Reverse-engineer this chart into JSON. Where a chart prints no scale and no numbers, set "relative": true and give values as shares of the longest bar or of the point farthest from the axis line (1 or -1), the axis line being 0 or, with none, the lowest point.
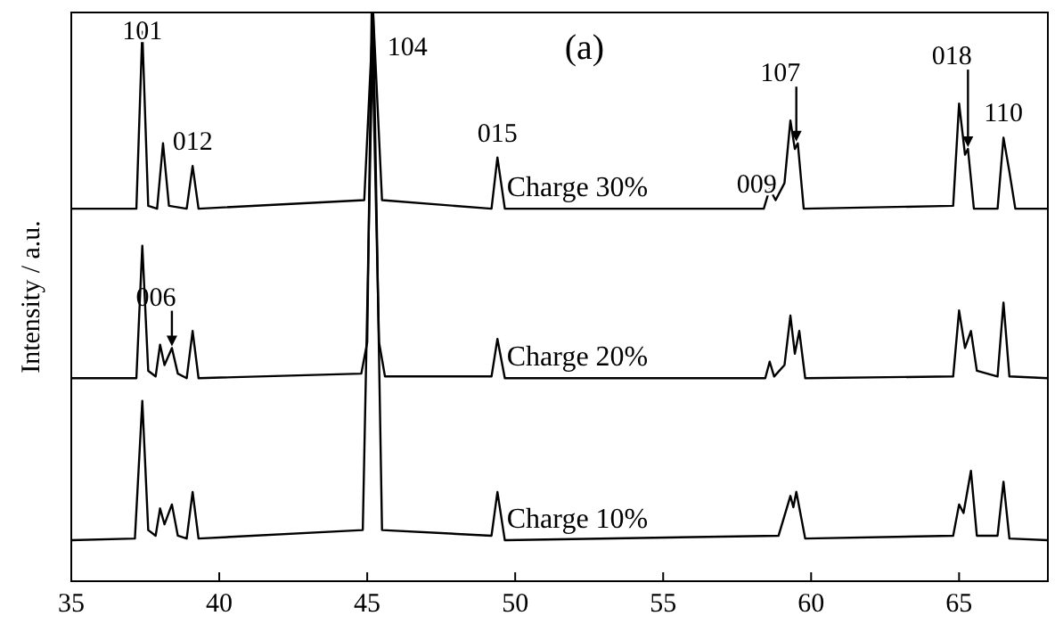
{
  "chart_data": {
    "type": "line",
    "ylabel": "Intensity / a.u.",
    "relative": true,
    "xlim": [
      35,
      68
    ],
    "xticks": [
      35,
      40,
      45,
      50,
      55,
      60,
      65
    ],
    "grid": false,
    "series": [
      {
        "name": "Charge 30%",
        "color": "#000000",
        "x": [
          35,
          37.2,
          37.4,
          37.6,
          37.9,
          38.1,
          38.3,
          38.9,
          39.1,
          39.3,
          44.9,
          45.2,
          45.5,
          49.2,
          49.4,
          49.65,
          58.4,
          58.6,
          58.8,
          59.1,
          59.3,
          59.45,
          59.55,
          59.75,
          64.8,
          65.0,
          65.2,
          65.3,
          65.5,
          66.3,
          66.5,
          66.7,
          66.9,
          68
        ],
        "values": [
          0.655,
          0.655,
          0.966,
          0.66,
          0.655,
          0.77,
          0.66,
          0.655,
          0.73,
          0.655,
          0.67,
          1,
          0.67,
          0.655,
          0.745,
          0.655,
          0.655,
          0.69,
          0.67,
          0.7,
          0.81,
          0.76,
          0.77,
          0.655,
          0.66,
          0.84,
          0.75,
          0.76,
          0.655,
          0.655,
          0.78,
          0.72,
          0.655,
          0.655
        ]
      },
      {
        "name": "Charge 20%",
        "color": "#000000",
        "x": [
          35,
          37.2,
          37.4,
          37.6,
          37.85,
          38.0,
          38.15,
          38.4,
          38.6,
          38.9,
          39.1,
          39.3,
          44.8,
          45.0,
          45.15,
          45.4,
          45.6,
          49.2,
          49.4,
          49.65,
          58.45,
          58.6,
          58.75,
          59.1,
          59.3,
          59.45,
          59.6,
          59.8,
          64.8,
          65.0,
          65.2,
          65.4,
          65.6,
          66.3,
          66.5,
          66.7,
          68
        ],
        "values": [
          0.357,
          0.357,
          0.59,
          0.37,
          0.36,
          0.416,
          0.38,
          0.41,
          0.365,
          0.357,
          0.44,
          0.357,
          0.365,
          0.42,
          1,
          0.42,
          0.36,
          0.36,
          0.426,
          0.357,
          0.357,
          0.386,
          0.36,
          0.38,
          0.467,
          0.4,
          0.44,
          0.357,
          0.36,
          0.476,
          0.41,
          0.44,
          0.37,
          0.36,
          0.49,
          0.36,
          0.357
        ]
      },
      {
        "name": "Charge 10%",
        "color": "#000000",
        "x": [
          35,
          37.15,
          37.4,
          37.6,
          37.85,
          38.0,
          38.15,
          38.4,
          38.6,
          38.9,
          39.1,
          39.3,
          44.85,
          45.2,
          45.5,
          49.2,
          49.4,
          49.65,
          58.9,
          59.3,
          59.4,
          59.5,
          59.8,
          64.8,
          65.0,
          65.15,
          65.4,
          65.6,
          66.3,
          66.5,
          66.7,
          68
        ],
        "values": [
          0.072,
          0.075,
          0.317,
          0.09,
          0.08,
          0.128,
          0.1,
          0.135,
          0.08,
          0.075,
          0.157,
          0.075,
          0.09,
          1,
          0.09,
          0.08,
          0.157,
          0.072,
          0.08,
          0.15,
          0.13,
          0.157,
          0.075,
          0.08,
          0.135,
          0.12,
          0.194,
          0.08,
          0.08,
          0.175,
          0.075,
          0.072
        ]
      }
    ],
    "annotations": [
      "(a)",
      {
        "text": "101",
        "x": 37.4,
        "y": 0.966
      },
      {
        "text": "012",
        "x": 39.1,
        "y": 0.73
      },
      {
        "text": "104",
        "x": 45.2,
        "y": 1
      },
      {
        "text": "015",
        "x": 49.4,
        "y": 0.745
      },
      {
        "text": "009",
        "x": 58.6,
        "y": 0.69
      },
      {
        "text": "107",
        "x": 59.5,
        "y": 0.77
      },
      {
        "text": "018",
        "x": 65.3,
        "y": 0.76
      },
      {
        "text": "110",
        "x": 66.5,
        "y": 0.78
      },
      {
        "text": "006",
        "x": 38.4,
        "y": 0.41
      }
    ]
  }
}
